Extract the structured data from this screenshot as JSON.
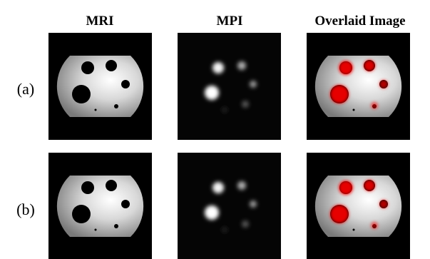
{
  "figure": {
    "columns": [
      "MRI",
      "MPI",
      "Overlaid Image"
    ],
    "rows": [
      "(a)",
      "(b)"
    ]
  }
}
